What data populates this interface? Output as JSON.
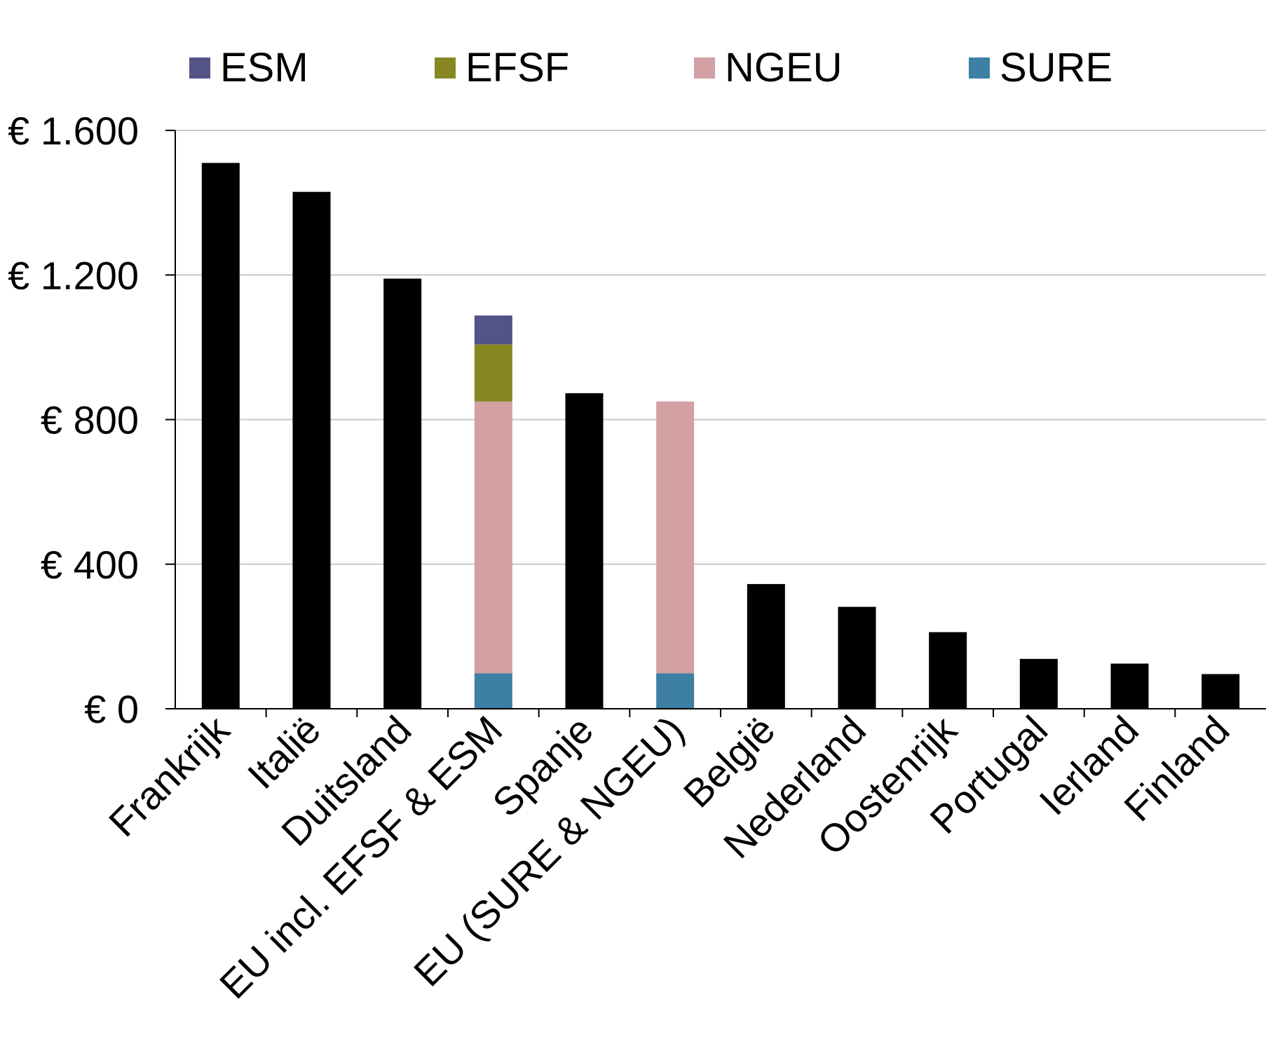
{
  "chart_data": {
    "type": "bar",
    "stacked": true,
    "categories": [
      "Frankrijk",
      "Italië",
      "Duitsland",
      "EU incl. EFSF & ESM",
      "Spanje",
      "EU (SURE & NGEU)",
      "België",
      "Nederland",
      "Oostenrijk",
      "Portugal",
      "Ierland",
      "Finland"
    ],
    "ylim": [
      0,
      1600
    ],
    "yticks": [
      0,
      400,
      800,
      1200,
      1600
    ],
    "ytick_labels": [
      "€ 0",
      "€ 400",
      "€ 800",
      "€ 1.200",
      "€ 1.600"
    ],
    "grid": true,
    "legend_position": "top",
    "legend": [
      "ESM",
      "EFSF",
      "NGEU",
      "SURE"
    ],
    "series": [
      {
        "key": "base",
        "color": "#000000",
        "values": [
          1510,
          1430,
          1190,
          0,
          873,
          0,
          345,
          282,
          212,
          138,
          125,
          96
        ]
      },
      {
        "key": "sure",
        "name": "SURE",
        "color": "#3e7fa4",
        "values": [
          0,
          0,
          0,
          98,
          0,
          98,
          0,
          0,
          0,
          0,
          0,
          0
        ]
      },
      {
        "key": "ngeu",
        "name": "NGEU",
        "color": "#d3a0a4",
        "values": [
          0,
          0,
          0,
          752,
          0,
          752,
          0,
          0,
          0,
          0,
          0,
          0
        ]
      },
      {
        "key": "efsf",
        "name": "EFSF",
        "color": "#878621",
        "values": [
          0,
          0,
          0,
          158,
          0,
          0,
          0,
          0,
          0,
          0,
          0,
          0
        ]
      },
      {
        "key": "esm",
        "name": "ESM",
        "color": "#535389",
        "values": [
          0,
          0,
          0,
          80,
          0,
          0,
          0,
          0,
          0,
          0,
          0,
          0
        ]
      }
    ]
  }
}
